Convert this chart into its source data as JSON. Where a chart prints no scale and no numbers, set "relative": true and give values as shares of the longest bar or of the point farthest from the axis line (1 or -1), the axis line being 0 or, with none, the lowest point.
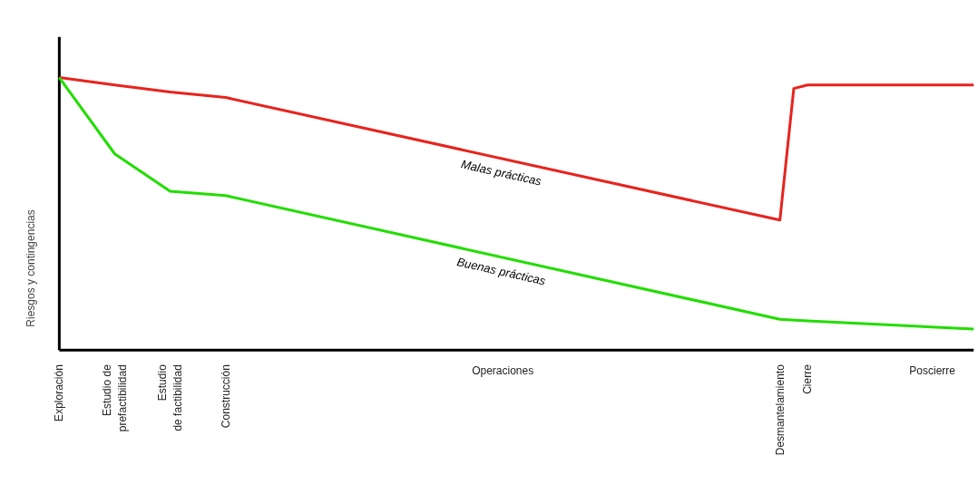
{
  "chart_data": {
    "type": "line",
    "relative": true,
    "ylabel": "Riesgos y contingencias",
    "categories": [
      "Exploración",
      null,
      null,
      null,
      "Estudio de\nprefactibilidad",
      null,
      null,
      null,
      "Estudio\nde factibilidad",
      null,
      null,
      null,
      "Construcción",
      null,
      null,
      null,
      null,
      null,
      null,
      null,
      null,
      null,
      null,
      null,
      null,
      null,
      null,
      null,
      null,
      null,
      null,
      null,
      "Operaciones",
      null,
      null,
      null,
      null,
      null,
      null,
      null,
      null,
      null,
      null,
      null,
      null,
      null,
      null,
      null,
      null,
      null,
      null,
      null,
      "Desmantelamiento",
      null,
      "Cierre",
      null,
      null,
      null,
      null,
      null,
      null,
      null,
      null,
      "Poscierre",
      null,
      null,
      null
    ],
    "series": [
      {
        "name": "Malas prácticas",
        "color": "#e8231d",
        "values": [
          1,
          null,
          null,
          null,
          0.973,
          null,
          null,
          null,
          0.947,
          null,
          null,
          null,
          0.927,
          null,
          null,
          null,
          null,
          null,
          null,
          null,
          null,
          null,
          null,
          null,
          null,
          null,
          null,
          null,
          null,
          null,
          null,
          null,
          null,
          null,
          null,
          null,
          null,
          null,
          null,
          null,
          null,
          null,
          null,
          null,
          null,
          null,
          null,
          null,
          null,
          null,
          null,
          null,
          0.477,
          0.96,
          0.973,
          null,
          null,
          null,
          null,
          null,
          null,
          null,
          null,
          null,
          null,
          null,
          0.973
        ]
      },
      {
        "name": "Buenas prácticas",
        "color": "#22dd00",
        "values": [
          1,
          null,
          null,
          null,
          0.72,
          null,
          null,
          null,
          0.583,
          null,
          null,
          null,
          0.567,
          null,
          null,
          null,
          null,
          null,
          null,
          null,
          null,
          null,
          null,
          null,
          null,
          null,
          null,
          null,
          null,
          null,
          null,
          null,
          null,
          null,
          null,
          null,
          null,
          null,
          null,
          null,
          null,
          null,
          null,
          null,
          null,
          null,
          null,
          null,
          null,
          null,
          null,
          null,
          0.113,
          null,
          0.107,
          null,
          null,
          null,
          null,
          null,
          null,
          null,
          null,
          null,
          null,
          null,
          0.077
        ]
      }
    ],
    "marker": "none",
    "line_style": "solid"
  }
}
